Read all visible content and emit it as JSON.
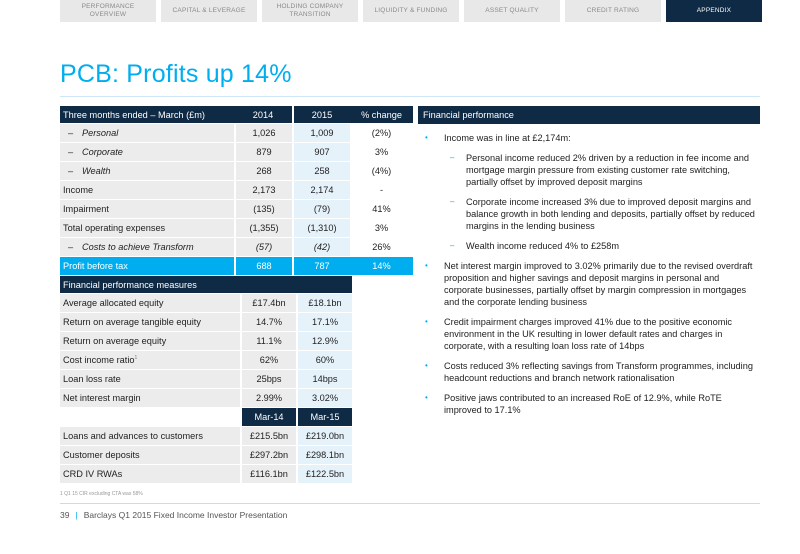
{
  "nav": {
    "tabs": [
      {
        "label": "PERFORMANCE\nOVERVIEW",
        "active": false
      },
      {
        "label": "CAPITAL & LEVERAGE",
        "active": false
      },
      {
        "label": "HOLDING COMPANY\nTRANSITION",
        "active": false
      },
      {
        "label": "LIQUIDITY & FUNDING",
        "active": false
      },
      {
        "label": "ASSET QUALITY",
        "active": false
      },
      {
        "label": "CREDIT RATING",
        "active": false
      },
      {
        "label": "APPENDIX",
        "active": true
      }
    ]
  },
  "page_title": "PCB: Profits up 14%",
  "income_table": {
    "headers": [
      "Three months ended – March (£m)",
      "2014",
      "2015",
      "% change"
    ],
    "rows": [
      {
        "label": "Personal",
        "sub": true,
        "v2014": "1,026",
        "v2015": "1,009",
        "change": "(2%)"
      },
      {
        "label": "Corporate",
        "sub": true,
        "v2014": "879",
        "v2015": "907",
        "change": "3%"
      },
      {
        "label": "Wealth",
        "sub": true,
        "v2014": "268",
        "v2015": "258",
        "change": "(4%)"
      },
      {
        "label": "Income",
        "sub": false,
        "v2014": "2,173",
        "v2015": "2,174",
        "change": "-"
      },
      {
        "label": "Impairment",
        "sub": false,
        "v2014": "(135)",
        "v2015": "(79)",
        "change": "41%"
      },
      {
        "label": "Total operating expenses",
        "sub": false,
        "v2014": "(1,355)",
        "v2015": "(1,310)",
        "change": "3%"
      },
      {
        "label": "Costs to achieve Transform",
        "sub": true,
        "v2014": "(57)",
        "v2015": "(42)",
        "change": "26%"
      }
    ],
    "total": {
      "label": "Profit before tax",
      "v2014": "688",
      "v2015": "787",
      "change": "14%"
    }
  },
  "measures": {
    "header": "Financial performance measures",
    "rows": [
      {
        "label": "Average allocated equity",
        "v2014": "£17.4bn",
        "v2015": "£18.1bn",
        "sup": ""
      },
      {
        "label": "Return on average tangible equity",
        "v2014": "14.7%",
        "v2015": "17.1%",
        "sup": ""
      },
      {
        "label": "Return on average equity",
        "v2014": "11.1%",
        "v2015": "12.9%",
        "sup": ""
      },
      {
        "label": "Cost income ratio",
        "v2014": "62%",
        "v2015": "60%",
        "sup": "1"
      },
      {
        "label": "Loan loss rate",
        "v2014": "25bps",
        "v2015": "14bps",
        "sup": ""
      },
      {
        "label": "Net interest margin",
        "v2014": "2.99%",
        "v2015": "3.02%",
        "sup": ""
      }
    ],
    "date_headers": [
      "Mar-14",
      "Mar-15"
    ],
    "balance_rows": [
      {
        "label": "Loans and advances to customers",
        "v2014": "£215.5bn",
        "v2015": "£219.0bn"
      },
      {
        "label": "Customer deposits",
        "v2014": "£297.2bn",
        "v2015": "£298.1bn"
      },
      {
        "label": "CRD IV RWAs",
        "v2014": "£116.1bn",
        "v2015": "£122.5bn"
      }
    ]
  },
  "footnote": "1 Q1 15 CIR excluding CTA was 58%",
  "footer": {
    "page": "39",
    "text": "Barclays Q1 2015 Fixed Income Investor Presentation"
  },
  "financial_performance": {
    "header": "Financial performance",
    "bullets": [
      {
        "text": "Income was in line at £2,174m:",
        "subs": [
          "Personal income reduced 2% driven by a reduction in fee income and mortgage margin pressure from existing customer rate switching, partially offset by improved deposit margins",
          "Corporate income increased 3% due to improved deposit margins and balance growth in both lending and deposits, partially offset by reduced margins in the lending business",
          "Wealth income reduced 4% to £258m"
        ]
      },
      {
        "text": "Net interest margin improved to 3.02% primarily due to the revised overdraft proposition and higher savings and deposit margins in personal and corporate businesses, partially offset by margin compression in mortgages and the corporate lending business",
        "subs": []
      },
      {
        "text": "Credit impairment charges improved 41% due to the positive economic environment in the UK resulting in lower default rates and charges in corporate, with a resulting loan loss rate of 14bps",
        "subs": []
      },
      {
        "text": "Costs reduced 3% reflecting savings from Transform programmes, including headcount reductions and branch network rationalisation",
        "subs": []
      },
      {
        "text": "Positive jaws contributed to an increased RoE of 12.9%, while RoTE improved to 17.1%",
        "subs": []
      }
    ]
  },
  "colors": {
    "navy": "#0f2a44",
    "cyan": "#00aeef",
    "grey": "#ececec"
  }
}
